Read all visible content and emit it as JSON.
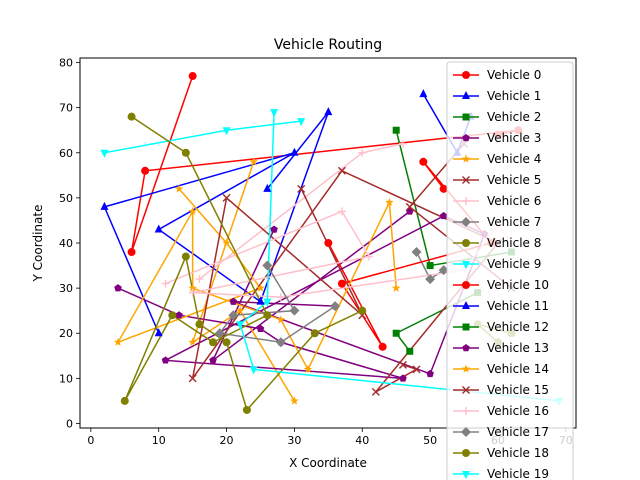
{
  "chart_data": {
    "type": "line",
    "title": "Vehicle Routing",
    "xlabel": "X Coordinate",
    "ylabel": "Y Coordinate",
    "xlim": [
      -1.6,
      71.5
    ],
    "ylim": [
      -1.0,
      81.0
    ],
    "xticks": [
      0,
      10,
      20,
      30,
      40,
      50,
      60,
      70
    ],
    "yticks": [
      0,
      10,
      20,
      30,
      40,
      50,
      60,
      70,
      80
    ],
    "grid": false,
    "legend_position": "top-right",
    "series": [
      {
        "name": "Vehicle 0",
        "color": "#ff0000",
        "marker": "circle",
        "points": [
          [
            15,
            77
          ],
          [
            6,
            38
          ],
          [
            8,
            56
          ],
          [
            63,
            65
          ],
          [
            60,
            64
          ]
        ]
      },
      {
        "name": "Vehicle 1",
        "color": "#0000ff",
        "marker": "triangle-up",
        "points": [
          [
            26,
            52
          ],
          [
            35,
            69
          ],
          [
            25,
            27
          ],
          [
            10,
            43
          ],
          [
            30,
            60
          ],
          [
            2,
            48
          ],
          [
            10,
            20
          ]
        ]
      },
      {
        "name": "Vehicle 2",
        "color": "#008000",
        "marker": "square",
        "points": [
          [
            45,
            65
          ],
          [
            50,
            35
          ],
          [
            62,
            38
          ]
        ]
      },
      {
        "name": "Vehicle 3",
        "color": "#800080",
        "marker": "pentagon",
        "points": [
          [
            47,
            47
          ],
          [
            18,
            14
          ],
          [
            27,
            43
          ]
        ]
      },
      {
        "name": "Vehicle 4",
        "color": "#ffa500",
        "marker": "star",
        "points": [
          [
            24,
            58
          ],
          [
            15,
            18
          ],
          [
            22,
            25
          ],
          [
            30,
            5
          ]
        ]
      },
      {
        "name": "Vehicle 5",
        "color": "#a52a2a",
        "marker": "x",
        "points": [
          [
            55,
            62
          ],
          [
            47,
            48
          ],
          [
            62,
            30
          ]
        ]
      },
      {
        "name": "Vehicle 6",
        "color": "#ffc0cb",
        "marker": "plus",
        "points": [
          [
            16,
            32
          ],
          [
            40,
            60
          ],
          [
            46,
            62
          ]
        ]
      },
      {
        "name": "Vehicle 7",
        "color": "#808080",
        "marker": "diamond",
        "points": [
          [
            48,
            38
          ],
          [
            50,
            32
          ],
          [
            52,
            34
          ]
        ]
      },
      {
        "name": "Vehicle 8",
        "color": "#808000",
        "marker": "circle",
        "points": [
          [
            62,
            20
          ],
          [
            57,
            22
          ],
          [
            60,
            18
          ]
        ]
      },
      {
        "name": "Vehicle 9",
        "color": "#00ffff",
        "marker": "triangle-down",
        "points": [
          [
            2,
            60
          ],
          [
            20,
            65
          ],
          [
            31,
            67
          ]
        ]
      },
      {
        "name": "Vehicle 10",
        "color": "#ff0000",
        "marker": "circle",
        "points": [
          [
            35,
            40
          ],
          [
            43,
            17
          ],
          [
            37,
            31
          ],
          [
            59,
            40
          ],
          [
            49,
            58
          ],
          [
            52,
            52
          ]
        ]
      },
      {
        "name": "Vehicle 11",
        "color": "#0000ff",
        "marker": "triangle-up",
        "points": [
          [
            49,
            73
          ],
          [
            54,
            60
          ],
          [
            56,
            68
          ]
        ]
      },
      {
        "name": "Vehicle 12",
        "color": "#008000",
        "marker": "square",
        "points": [
          [
            47,
            16
          ],
          [
            45,
            20
          ],
          [
            57,
            29
          ]
        ]
      },
      {
        "name": "Vehicle 13",
        "color": "#800080",
        "marker": "pentagon",
        "points": [
          [
            4,
            30
          ],
          [
            13,
            24
          ],
          [
            25,
            21
          ],
          [
            28,
            18
          ],
          [
            46,
            10
          ],
          [
            11,
            14
          ],
          [
            52,
            46
          ],
          [
            58,
            42
          ],
          [
            50,
            11
          ],
          [
            21,
            27
          ],
          [
            36,
            26
          ]
        ]
      },
      {
        "name": "Vehicle 14",
        "color": "#ffa500",
        "marker": "star",
        "points": [
          [
            13,
            52
          ],
          [
            20,
            40
          ],
          [
            25,
            30
          ],
          [
            4,
            18
          ],
          [
            15,
            47
          ],
          [
            15,
            30
          ],
          [
            28,
            23
          ],
          [
            32,
            12
          ],
          [
            44,
            49
          ],
          [
            45,
            30
          ]
        ]
      },
      {
        "name": "Vehicle 15",
        "color": "#a52a2a",
        "marker": "x",
        "points": [
          [
            31,
            52
          ],
          [
            40,
            24
          ],
          [
            20,
            50
          ],
          [
            15,
            10
          ],
          [
            37,
            56
          ],
          [
            60,
            40
          ],
          [
            42,
            7
          ],
          [
            48,
            12
          ],
          [
            46,
            13
          ]
        ]
      },
      {
        "name": "Vehicle 16",
        "color": "#ffc0cb",
        "marker": "plus",
        "points": [
          [
            11,
            31
          ],
          [
            37,
            47
          ],
          [
            41,
            37
          ],
          [
            15,
            29
          ],
          [
            28,
            28
          ],
          [
            55,
            34
          ],
          [
            60,
            44
          ],
          [
            62,
            40
          ]
        ]
      },
      {
        "name": "Vehicle 17",
        "color": "#808080",
        "marker": "diamond",
        "points": [
          [
            26,
            35
          ],
          [
            30,
            25
          ],
          [
            21,
            24
          ],
          [
            19,
            20
          ],
          [
            28,
            18
          ],
          [
            36,
            26
          ]
        ]
      },
      {
        "name": "Vehicle 18",
        "color": "#808000",
        "marker": "circle",
        "points": [
          [
            6,
            68
          ],
          [
            14,
            60
          ],
          [
            26,
            24
          ],
          [
            18,
            18
          ],
          [
            12,
            24
          ],
          [
            5,
            5
          ],
          [
            14,
            37
          ],
          [
            16,
            22
          ],
          [
            20,
            18
          ],
          [
            23,
            3
          ],
          [
            33,
            20
          ],
          [
            40,
            25
          ]
        ]
      },
      {
        "name": "Vehicle 19",
        "color": "#00ffff",
        "marker": "triangle-down",
        "points": [
          [
            27,
            69
          ],
          [
            26,
            27
          ],
          [
            22,
            22
          ],
          [
            24,
            12
          ],
          [
            69,
            5
          ]
        ]
      }
    ]
  }
}
